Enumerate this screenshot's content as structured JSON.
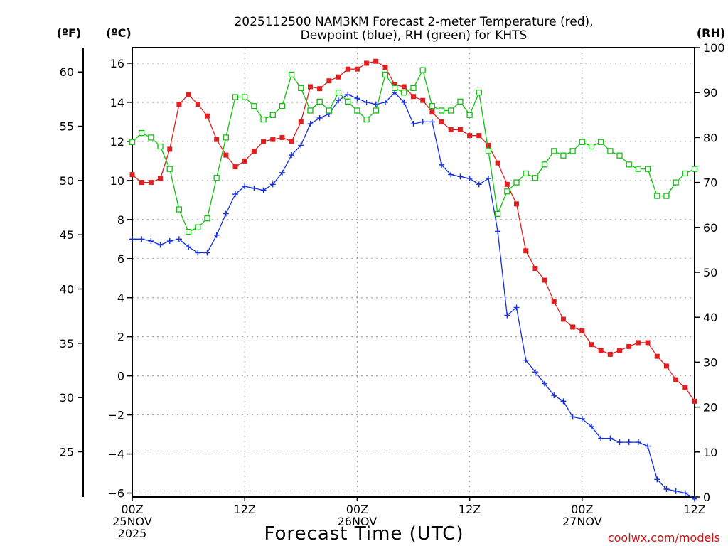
{
  "colors": {
    "temperature": "#e02020",
    "dewpoint": "#1530e0",
    "rh": "#10c010",
    "grid": "#9a9a9a",
    "credit": "#d01010"
  },
  "header": {
    "title_line1": "2025112500 NAM3KM Forecast 2-meter Temperature (red),",
    "title_line2": "Dewpoint (blue), RH (green) for KHTS"
  },
  "axes": {
    "f_unit": "(ºF)",
    "c_unit": "(ºC)",
    "rh_unit": "(RH)",
    "xlabel": "Forecast Time (UTC)",
    "credit": "coolwx.com/models"
  },
  "chart_data": {
    "type": "line",
    "title": "2025112500 NAM3KM Forecast 2-meter Temperature (red), Dewpoint (blue), RH (green) for KHTS",
    "xlabel": "Forecast Time (UTC)",
    "x_unit": "forecast hour from 2025-11-25 00Z",
    "xlim": [
      0,
      60
    ],
    "celsius_ylim": [
      -6.2,
      16.8
    ],
    "celsius_ticks": [
      -6,
      -4,
      -2,
      0,
      2,
      4,
      6,
      8,
      10,
      12,
      14,
      16
    ],
    "fahrenheit_ticks": [
      25,
      30,
      35,
      40,
      45,
      50,
      55,
      60
    ],
    "rh_ylim": [
      0,
      100
    ],
    "rh_ticks": [
      0,
      10,
      20,
      30,
      40,
      50,
      60,
      70,
      80,
      90,
      100
    ],
    "x_ticks": [
      {
        "hour": 0,
        "lines": [
          "00Z",
          "25NOV",
          "2025"
        ]
      },
      {
        "hour": 12,
        "lines": [
          "12Z"
        ]
      },
      {
        "hour": 24,
        "lines": [
          "00Z",
          "26NOV"
        ]
      },
      {
        "hour": 36,
        "lines": [
          "12Z"
        ]
      },
      {
        "hour": 48,
        "lines": [
          "00Z",
          "27NOV"
        ]
      },
      {
        "hour": 60,
        "lines": [
          "12Z"
        ]
      }
    ],
    "grid": true,
    "hours": [
      0,
      1,
      2,
      3,
      4,
      5,
      6,
      7,
      8,
      9,
      10,
      11,
      12,
      13,
      14,
      15,
      16,
      17,
      18,
      19,
      20,
      21,
      22,
      23,
      24,
      25,
      26,
      27,
      28,
      29,
      30,
      31,
      32,
      33,
      34,
      35,
      36,
      37,
      38,
      39,
      40,
      41,
      42,
      43,
      44,
      45,
      46,
      47,
      48,
      49,
      50,
      51,
      52,
      53,
      54,
      55,
      56,
      57,
      58,
      59,
      60
    ],
    "series": [
      {
        "name": "2-meter Temperature",
        "unit": "degC",
        "color_key": "temperature",
        "marker": "filled-square",
        "values": [
          10.3,
          9.9,
          9.9,
          10.1,
          11.6,
          13.9,
          14.4,
          13.9,
          13.3,
          12.1,
          11.3,
          10.7,
          11.0,
          11.5,
          12.0,
          12.1,
          12.2,
          12.0,
          13.0,
          14.8,
          14.7,
          15.1,
          15.3,
          15.7,
          15.7,
          16.0,
          16.1,
          15.8,
          14.9,
          14.8,
          14.3,
          14.1,
          13.5,
          13.0,
          12.6,
          12.6,
          12.3,
          12.3,
          11.8,
          10.9,
          9.8,
          8.8,
          6.4,
          5.5,
          4.9,
          3.8,
          2.9,
          2.5,
          2.3,
          1.6,
          1.3,
          1.1,
          1.3,
          1.5,
          1.7,
          1.7,
          1.0,
          0.5,
          -0.2,
          -0.6,
          -1.3
        ]
      },
      {
        "name": "2-meter Dewpoint",
        "unit": "degC",
        "color_key": "dewpoint",
        "marker": "plus",
        "values": [
          7.0,
          7.0,
          6.9,
          6.7,
          6.9,
          7.0,
          6.6,
          6.3,
          6.3,
          7.2,
          8.3,
          9.3,
          9.7,
          9.6,
          9.5,
          9.8,
          10.4,
          11.3,
          11.8,
          12.9,
          13.2,
          13.4,
          14.1,
          14.4,
          14.2,
          14.0,
          13.9,
          14.0,
          14.5,
          14.0,
          12.9,
          13.0,
          13.0,
          10.8,
          10.3,
          10.2,
          10.1,
          9.8,
          10.1,
          7.4,
          3.1,
          3.5,
          0.8,
          0.2,
          -0.4,
          -1.0,
          -1.3,
          -2.1,
          -2.2,
          -2.6,
          -3.2,
          -3.2,
          -3.4,
          -3.4,
          -3.4,
          -3.6,
          -5.3,
          -5.8,
          -5.9,
          -6.0,
          -6.3
        ]
      },
      {
        "name": "Relative Humidity",
        "unit": "percent",
        "color_key": "rh",
        "marker": "open-square",
        "values": [
          79,
          81,
          80,
          78,
          73,
          64,
          59,
          60,
          62,
          71,
          80,
          89,
          89,
          87,
          84,
          85,
          87,
          94,
          91,
          86,
          88,
          86,
          90,
          88,
          86,
          84,
          86,
          94,
          91,
          90,
          91,
          95,
          87,
          86,
          86,
          88,
          85,
          90,
          77,
          63,
          68,
          70,
          72,
          71,
          74,
          77,
          76,
          77,
          79,
          78,
          79,
          77,
          76,
          74,
          73,
          73,
          67,
          67,
          70,
          72,
          73
        ]
      }
    ]
  }
}
